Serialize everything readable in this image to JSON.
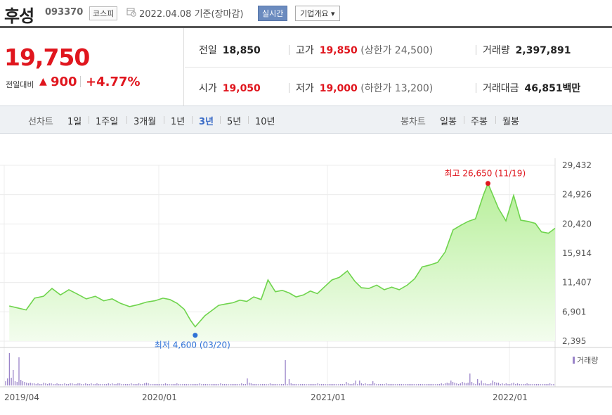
{
  "header": {
    "name": "후성",
    "code": "093370",
    "market": "코스피",
    "date": "2022.04.08 기준(장마감)",
    "realtime_label": "실시간",
    "overview_label": "기업개요 ▾"
  },
  "price": {
    "current": "19,750",
    "diff_label": "전일대비",
    "diff_icon": "▲",
    "diff": "900",
    "rate": "+4.77%"
  },
  "info": {
    "prev_label": "전일",
    "prev": "18,850",
    "high_label": "고가",
    "high": "19,850",
    "upper_limit": "(상한가 24,500)",
    "volume_label": "거래량",
    "volume": "2,397,891",
    "open_label": "시가",
    "open": "19,050",
    "low_label": "저가",
    "low": "19,000",
    "lower_limit": "(하한가 13,200)",
    "amount_label": "거래대금",
    "amount": "46,851백만"
  },
  "tabs": {
    "line_label": "선차트",
    "line_tabs": [
      "1일",
      "1주일",
      "3개월",
      "1년",
      "3년",
      "5년",
      "10년"
    ],
    "active_tab": "3년",
    "candle_label": "봉차트",
    "candle_tabs": [
      "일봉",
      "주봉",
      "월봉"
    ]
  },
  "chart_data": {
    "type": "area",
    "y_ticks": [
      "29,432",
      "24,926",
      "20,420",
      "15,914",
      "11,407",
      "6,901",
      "2,395"
    ],
    "ylim": [
      2395,
      29432
    ],
    "x_ticks": [
      "2019/04",
      "2020/01",
      "2021/01",
      "2022/01"
    ],
    "x_tick_dates": [
      "2019-04",
      "2020-01",
      "2021-01",
      "2022-01"
    ],
    "high_annotation": "최고 26,650 (11/19)",
    "low_annotation": "최저 4,600 (03/20)",
    "high": {
      "date": "2021-11-19",
      "value": 26650
    },
    "low": {
      "date": "2020-03-20",
      "value": 4600
    },
    "volume_legend": "거래량",
    "series": [
      {
        "name": "종가",
        "x": [
          "2019-04-10",
          "2019-04-25",
          "2019-05-10",
          "2019-05-25",
          "2019-06-10",
          "2019-06-25",
          "2019-07-10",
          "2019-07-25",
          "2019-08-10",
          "2019-08-25",
          "2019-09-10",
          "2019-09-25",
          "2019-10-10",
          "2019-10-25",
          "2019-11-10",
          "2019-11-25",
          "2019-12-10",
          "2019-12-25",
          "2020-01-10",
          "2020-01-25",
          "2020-02-10",
          "2020-02-25",
          "2020-03-10",
          "2020-03-20",
          "2020-04-10",
          "2020-04-25",
          "2020-05-10",
          "2020-05-25",
          "2020-06-10",
          "2020-06-25",
          "2020-07-10",
          "2020-07-25",
          "2020-08-10",
          "2020-08-25",
          "2020-09-10",
          "2020-09-25",
          "2020-10-10",
          "2020-10-25",
          "2020-11-10",
          "2020-11-25",
          "2020-12-10",
          "2020-12-25",
          "2021-01-10",
          "2021-01-25",
          "2021-02-10",
          "2021-02-25",
          "2021-03-10",
          "2021-03-25",
          "2021-04-10",
          "2021-04-25",
          "2021-05-10",
          "2021-05-25",
          "2021-06-10",
          "2021-06-25",
          "2021-07-10",
          "2021-07-25",
          "2021-08-10",
          "2021-08-25",
          "2021-09-10",
          "2021-09-25",
          "2021-10-10",
          "2021-10-25",
          "2021-11-10",
          "2021-11-19",
          "2021-12-10",
          "2021-12-25",
          "2022-01-10",
          "2022-01-25",
          "2022-02-10",
          "2022-02-25",
          "2022-03-10",
          "2022-03-25",
          "2022-04-08"
        ],
        "values": [
          7800,
          7500,
          7200,
          9000,
          9300,
          10500,
          9500,
          10300,
          9600,
          8900,
          9300,
          8600,
          8900,
          8200,
          7700,
          8000,
          8400,
          8600,
          9000,
          8800,
          8200,
          7300,
          5600,
          4600,
          6300,
          7100,
          7900,
          8100,
          8300,
          8700,
          8500,
          9200,
          8800,
          11800,
          10000,
          10200,
          9800,
          9200,
          9500,
          10100,
          9700,
          10700,
          11800,
          12200,
          13200,
          11600,
          10600,
          10500,
          11000,
          10300,
          10700,
          10300,
          11000,
          12000,
          13800,
          14100,
          14500,
          16100,
          19500,
          20200,
          20800,
          21200,
          24900,
          26650,
          22800,
          20900,
          24800,
          21000,
          20800,
          20500,
          19200,
          19000,
          19750
        ]
      }
    ]
  }
}
